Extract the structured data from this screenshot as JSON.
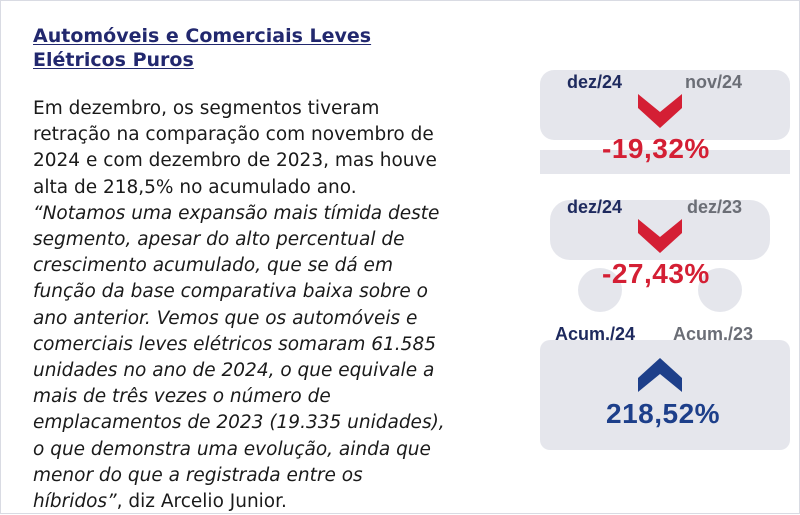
{
  "title_line1": "Automóveis e Comerciais Leves",
  "title_line2": "Elétricos Puros",
  "paragraph_lines": [
    "Em dezembro, os segmentos tiveram",
    "retração na comparação com novembro de",
    "2024 e com dezembro de 2023, mas houve",
    "alta de 218,5% no acumulado ano."
  ],
  "quote_lines": [
    "“Notamos uma expansão mais tímida deste",
    "segmento, apesar do alto percentual de",
    "crescimento acumulado, que se dá em",
    "função da base comparativa baixa sobre o",
    "ano anterior. Vemos que os automóveis e",
    "comerciais leves elétricos somaram 61.585",
    "unidades no ano de 2024, o que equivale a",
    "mais de três vezes o número de",
    "emplacamentos de 2023 (19.335 unidades),",
    "o que demonstra uma evolução, ainda que",
    "menor do que a registrada entre os",
    "híbridos”"
  ],
  "attribution": ", diz Arcelio Junior.",
  "stats": [
    {
      "left_label": "dez/24",
      "right_label": "nov/24",
      "direction": "down",
      "value": "-19,32%"
    },
    {
      "left_label": "dez/24",
      "right_label": "dez/23",
      "direction": "down",
      "value": "-27,43%"
    },
    {
      "left_label": "Acum./24",
      "right_label": "Acum./23",
      "direction": "up",
      "value": "218,52%"
    }
  ],
  "colors": {
    "title": "#22286e",
    "negative": "#d41f34",
    "positive": "#1d3f8a",
    "label_dark": "#1e2a5e",
    "label_gray": "#6b6e76"
  },
  "icons": [
    "down-chevron-icon",
    "down-chevron-icon",
    "up-chevron-icon"
  ]
}
